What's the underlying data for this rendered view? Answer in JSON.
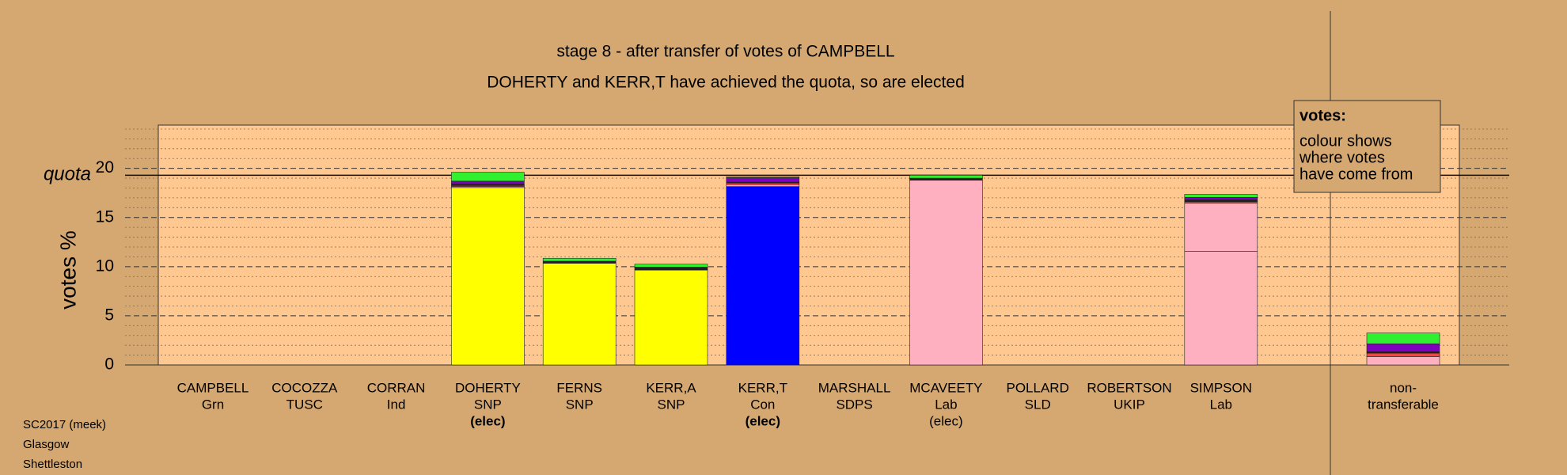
{
  "chart_data": {
    "type": "stacked_bar",
    "title": "stage 8 - after transfer of votes of CAMPBELL",
    "subtitle": "DOHERTY and KERR,T have achieved the quota, so are elected",
    "y_label": "votes %",
    "categories": [
      "CAMPBELL",
      "COCOZZA",
      "CORRAN",
      "DOHERTY",
      "FERNS",
      "KERR,A",
      "KERR,T",
      "MARSHALL",
      "MCAVEETY",
      "POLLARD",
      "ROBERTSON",
      "SIMPSON",
      "non-"
    ],
    "parties": [
      "Grn",
      "TUSC",
      "Ind",
      "SNP",
      "SNP",
      "SNP",
      "Con",
      "SDPS",
      "Lab",
      "SLD",
      "UKIP",
      "Lab",
      "transferable"
    ],
    "status": [
      null,
      null,
      null,
      "(elec)",
      null,
      null,
      "(elec)",
      null,
      "(elec)",
      null,
      null,
      null,
      null
    ],
    "status_bold": [
      false,
      false,
      false,
      true,
      false,
      false,
      true,
      false,
      false,
      false,
      false,
      false,
      false
    ],
    "series": [
      {
        "colors": [
          null,
          null,
          null,
          "#ffff00",
          "#ffff00",
          "#ffff00",
          "#0000ff",
          null,
          "#ffb0c0",
          null,
          null,
          "#ffb0c0",
          null
        ],
        "values": [
          0,
          0,
          0,
          18.05,
          10.35,
          9.65,
          18.15,
          0,
          18.8,
          0,
          0,
          11.55,
          0
        ]
      },
      {
        "color": "#ffb0c0",
        "values": [
          0,
          0,
          0,
          0.1,
          0,
          0,
          0.2,
          0,
          0,
          0,
          0,
          4.9,
          0.85
        ]
      },
      {
        "color": "#ff4040",
        "values": [
          0,
          0,
          0,
          0.1,
          0,
          0,
          0.15,
          0,
          0,
          0,
          0,
          0.15,
          0.35
        ]
      },
      {
        "color": "#202020",
        "values": [
          0,
          0,
          0,
          0.15,
          0.15,
          0.25,
          0.1,
          0,
          0.2,
          0,
          0,
          0.2,
          0.15
        ]
      },
      {
        "color": "#8000c0",
        "values": [
          0,
          0,
          0,
          0.3,
          0.05,
          0.05,
          0.45,
          0,
          0,
          0,
          0,
          0.25,
          0.8
        ]
      },
      {
        "color": "#30f030",
        "values": [
          0,
          0,
          0,
          0.9,
          0.3,
          0.3,
          0.1,
          0,
          0.3,
          0,
          0,
          0.3,
          1.1
        ]
      }
    ],
    "ylim": [
      0,
      24.4
    ],
    "yticks": [
      0,
      5,
      10,
      15,
      20
    ],
    "minor_yticks": [
      1,
      2,
      3,
      4,
      6,
      7,
      8,
      9,
      11,
      12,
      13,
      14,
      16,
      17,
      18,
      19,
      21,
      22,
      23,
      24
    ],
    "grid": true,
    "quota": 19.3,
    "quota_label": "quota",
    "legend": {
      "title": "votes:",
      "lines": [
        "colour shows",
        "where votes",
        "have come from"
      ]
    },
    "footer": [
      "SC2017 (meek)",
      "Glasgow",
      "Shettleston"
    ]
  }
}
